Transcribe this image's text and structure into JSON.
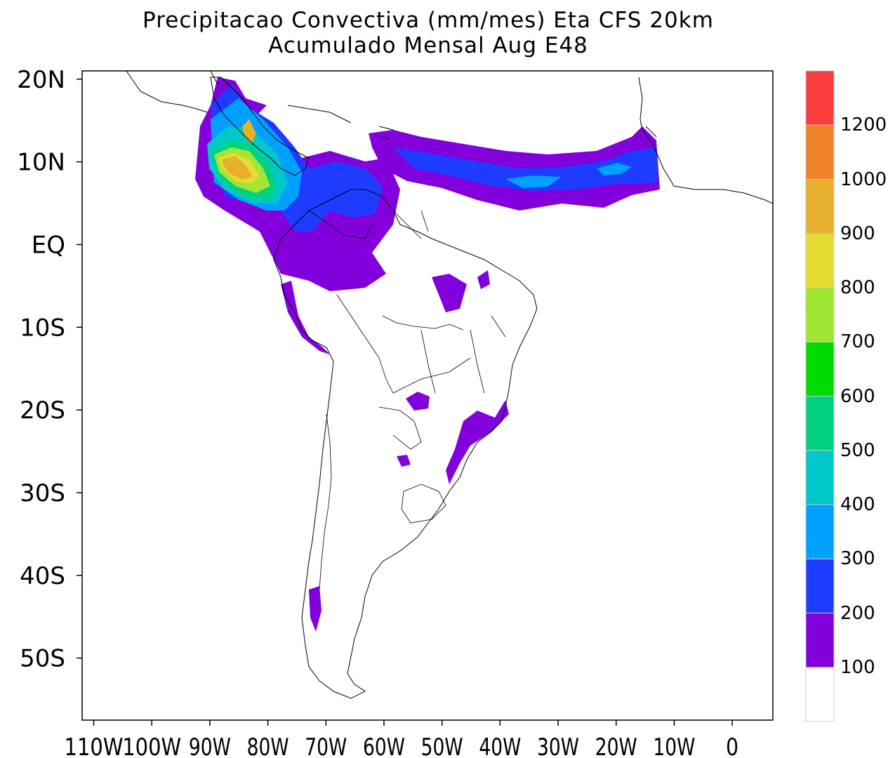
{
  "title": {
    "line1": "Precipitacao Convectiva (mm/mes) Eta CFS 20km",
    "line2": "Acumulado Mensal Aug  E48"
  },
  "map": {
    "lon_range": [
      -112,
      7
    ],
    "lat_range": [
      -57.5,
      21
    ],
    "lat_ticks": [
      {
        "value": 20,
        "label": "20N"
      },
      {
        "value": 10,
        "label": "10N"
      },
      {
        "value": 0,
        "label": "EQ"
      },
      {
        "value": -10,
        "label": "10S"
      },
      {
        "value": -20,
        "label": "20S"
      },
      {
        "value": -30,
        "label": "30S"
      },
      {
        "value": -40,
        "label": "40S"
      },
      {
        "value": -50,
        "label": "50S"
      }
    ],
    "lon_ticks": [
      {
        "value": -110,
        "label": "110W"
      },
      {
        "value": -100,
        "label": "100W"
      },
      {
        "value": -90,
        "label": "90W"
      },
      {
        "value": -80,
        "label": "80W"
      },
      {
        "value": -70,
        "label": "70W"
      },
      {
        "value": -60,
        "label": "60W"
      },
      {
        "value": -50,
        "label": "50W"
      },
      {
        "value": -40,
        "label": "40W"
      },
      {
        "value": -30,
        "label": "30W"
      },
      {
        "value": -20,
        "label": "20W"
      },
      {
        "value": -10,
        "label": "10W"
      },
      {
        "value": 0,
        "label": "0"
      }
    ]
  },
  "legend": {
    "colors": [
      "#ffffff",
      "#8200dc",
      "#1e3cff",
      "#00a0ff",
      "#00c8c8",
      "#00d282",
      "#00dc00",
      "#a0e632",
      "#e6dc32",
      "#e6af2d",
      "#f08228",
      "#fa3c3c"
    ],
    "labels": [
      "100",
      "200",
      "300",
      "400",
      "500",
      "600",
      "700",
      "800",
      "900",
      "1000",
      "1200"
    ]
  }
}
